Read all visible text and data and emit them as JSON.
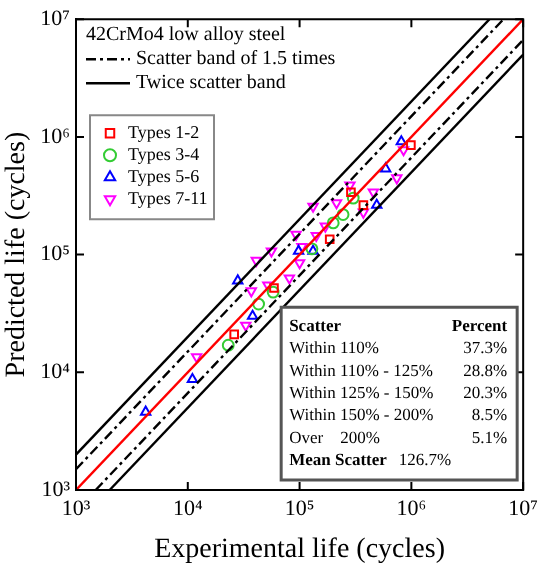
{
  "chart_data": {
    "type": "scatter",
    "xlabel": "Experimental life (cycles)",
    "ylabel": "Predicted life (cycles)",
    "legend_title": "42CrMo4 low alloy steel",
    "log": "xy",
    "legend": "top left",
    "grid": false,
    "xlim": [
      1000,
      10000000
    ],
    "ylim": [
      1000,
      10000000
    ],
    "xticks": [
      {
        "value": 1000,
        "label": "10³"
      },
      {
        "value": 10000,
        "label": "10⁴"
      },
      {
        "value": 100000,
        "label": "10⁵"
      },
      {
        "value": 1000000,
        "label": "10⁶"
      },
      {
        "value": 10000000,
        "label": "10⁷"
      }
    ],
    "yticks": [
      {
        "value": 1000,
        "label": "10³"
      },
      {
        "value": 10000,
        "label": "10⁴"
      },
      {
        "value": 100000,
        "label": "10⁵"
      },
      {
        "value": 1000000,
        "label": "10⁶"
      },
      {
        "value": 10000000,
        "label": "10⁷"
      }
    ],
    "series": [
      {
        "type": "line",
        "color": "#ff0000",
        "line_style": "solid",
        "x": [
          1000,
          10000000
        ],
        "values": [
          1000,
          10000000
        ]
      },
      {
        "type": "line",
        "name": "Scatter band of 1.5 times",
        "color": "#000000",
        "line_style": "dashed",
        "x": [
          1000,
          6667000
        ],
        "values": [
          1500,
          10000000
        ]
      },
      {
        "type": "line",
        "color": "#000000",
        "line_style": "dashed",
        "x": [
          1500,
          10000000
        ],
        "values": [
          1000,
          6667000
        ]
      },
      {
        "type": "line",
        "name": "Twice scatter band",
        "color": "#000000",
        "line_style": "solid",
        "x": [
          1000,
          5000000
        ],
        "values": [
          2000,
          10000000
        ]
      },
      {
        "type": "line",
        "color": "#000000",
        "line_style": "solid",
        "x": [
          2000,
          10000000
        ],
        "values": [
          1000,
          5000000
        ]
      },
      {
        "type": "scatter",
        "name": "Types 1-2",
        "color": "#ff0000",
        "marker": "square",
        "x": [
          990000,
          288000,
          372000,
          186000,
          59000,
          26000
        ],
        "values": [
          851000,
          339000,
          263000,
          135000,
          52000,
          21000
        ]
      },
      {
        "type": "scatter",
        "name": "Types 3-4",
        "color": "#33cc33",
        "marker": "circle",
        "x": [
          302000,
          245000,
          200000,
          129000,
          43000,
          23000,
          58000
        ],
        "values": [
          302000,
          219000,
          186000,
          112000,
          38000,
          17000,
          48000
        ]
      },
      {
        "type": "scatter",
        "name": "Types 5-6",
        "color": "#0000ff",
        "marker": "triangle",
        "x": [
          813000,
          589000,
          490000,
          98000,
          28000,
          38000,
          11000,
          4200,
          132000
        ],
        "values": [
          912000,
          537000,
          263000,
          107000,
          60000,
          30000,
          8700,
          4600,
          107000
        ]
      },
      {
        "type": "scatter",
        "name": "Types 7-11",
        "color": "#ff00ff",
        "marker": "triangle-down",
        "x": [
          132000,
          214000,
          282000,
          457000,
          741000,
          851000,
          93000,
          170000,
          141000,
          56000,
          41000,
          100000,
          81000,
          52000,
          37000,
          33000,
          12000,
          372000,
          105000
        ],
        "values": [
          257000,
          275000,
          389000,
          339000,
          447000,
          776000,
          148000,
          174000,
          145000,
          107000,
          89000,
          85000,
          63000,
          55000,
          49000,
          25000,
          13500,
          229000,
          117000
        ]
      }
    ],
    "annotations": [
      "Scatter",
      "Percent",
      "Within 110%",
      "37.3%",
      "Within 110% - 125%",
      "28.8%",
      "Within 125% - 150%",
      "20.3%",
      "Within 150% - 200%",
      "8.5%",
      "Over    200%",
      "5.1%",
      "Mean Scatter",
      "126.7%"
    ]
  }
}
